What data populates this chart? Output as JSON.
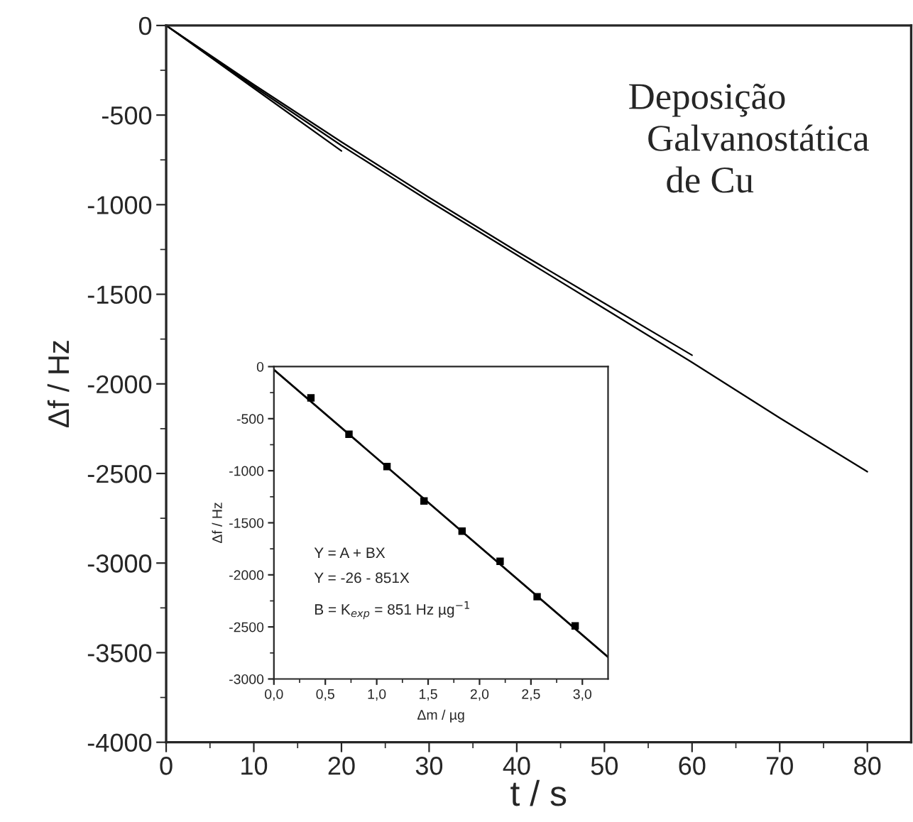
{
  "chart_data": [
    {
      "type": "line",
      "xlabel": "t / s",
      "ylabel": "Δf / Hz",
      "xlim": [
        0,
        85
      ],
      "ylim": [
        -4000,
        0
      ],
      "xticks": [
        0,
        10,
        20,
        30,
        40,
        50,
        60,
        70,
        80
      ],
      "yticks": [
        -4000,
        -3500,
        -3000,
        -2500,
        -2000,
        -1500,
        -1000,
        -500,
        0
      ],
      "annotations": [
        "Deposição\n  Galvanostática\n    de Cu"
      ],
      "marker": "none",
      "line_style": "solid",
      "grid": false,
      "legend": false,
      "series": [
        {
          "color": "#000000",
          "x": [
            0,
            10,
            20,
            30,
            40,
            50,
            60,
            70,
            80
          ],
          "values": [
            0,
            -340,
            -670,
            -980,
            -1280,
            -1580,
            -1880,
            -2190,
            -2490
          ]
        },
        {
          "color": "#000000",
          "x": [
            0,
            10,
            20,
            30,
            40,
            50,
            60
          ],
          "values": [
            0,
            -330,
            -650,
            -960,
            -1260,
            -1550,
            -1840
          ]
        },
        {
          "color": "#000000",
          "x": [
            0,
            10,
            20
          ],
          "values": [
            0,
            -350,
            -700
          ]
        }
      ]
    },
    {
      "type": "scatter",
      "xlabel": "Δm / µg",
      "ylabel": "Δf / Hz",
      "xlim": [
        0,
        3.25
      ],
      "ylim": [
        -3000,
        0
      ],
      "xticks": [
        {
          "value": 0,
          "label": "0,0"
        },
        {
          "value": 0.5,
          "label": "0,5"
        },
        {
          "value": 1,
          "label": "1,0"
        },
        {
          "value": 1.5,
          "label": "1,5"
        },
        {
          "value": 2,
          "label": "2,0"
        },
        {
          "value": 2.5,
          "label": "2,5"
        },
        {
          "value": 3,
          "label": "3,0"
        }
      ],
      "yticks": [
        -3000,
        -2500,
        -2000,
        -1500,
        -1000,
        -500,
        0
      ],
      "annotations": [
        "Y = A + BX",
        "Y = -26 - 851X",
        "B = K$_{exp}$ = 851 Hz µg$^{−1}$"
      ],
      "marker": "square",
      "grid": false,
      "legend": false,
      "series": [
        {
          "color": "#000000",
          "x": [
            0.36,
            0.73,
            1.1,
            1.46,
            1.83,
            2.2,
            2.56,
            2.93
          ],
          "values": [
            -300,
            -650,
            -960,
            -1290,
            -1580,
            -1870,
            -2210,
            -2490
          ]
        },
        {
          "type": "line",
          "marker": "none",
          "color": "#000000",
          "x": [
            0,
            3.25
          ],
          "values": [
            -30,
            -2790
          ]
        }
      ]
    }
  ]
}
